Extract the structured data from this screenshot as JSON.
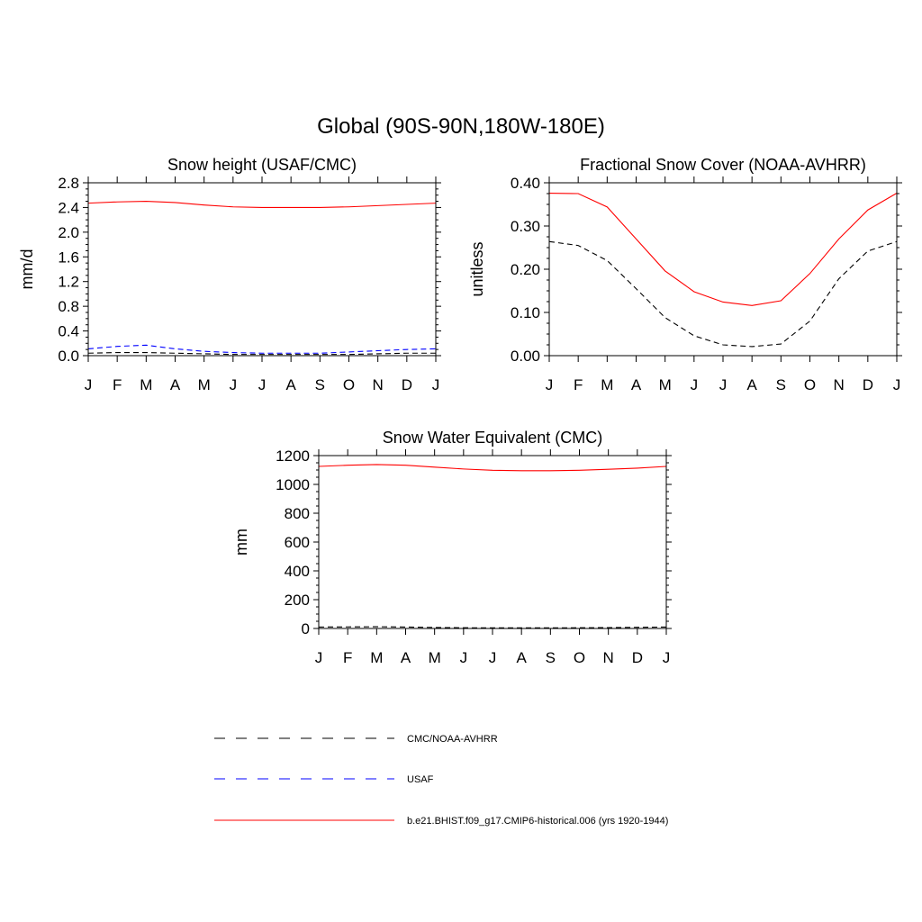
{
  "figure": {
    "title": "Global (90S-90N,180W-180E)"
  },
  "legend": {
    "entries": [
      {
        "label": "CMC/NOAA-AVHRR",
        "color": "#000000",
        "style": "dashed"
      },
      {
        "label": "USAF",
        "color": "#0000ff",
        "style": "dashed"
      },
      {
        "label": "b.e21.BHIST.f09_g17.CMIP6-historical.006 (yrs 1920-1944)",
        "color": "#ff0000",
        "style": "solid"
      }
    ]
  },
  "chart_data": [
    {
      "type": "line",
      "title": "Snow height (USAF/CMC)",
      "xlabel": "",
      "ylabel": "mm/d",
      "categories": [
        "J",
        "F",
        "M",
        "A",
        "M",
        "J",
        "J",
        "A",
        "S",
        "O",
        "N",
        "D",
        "J"
      ],
      "ylim": [
        0,
        2.8
      ],
      "yticks": [
        0,
        0.4,
        0.8,
        1.2,
        1.6,
        2.0,
        2.4,
        2.8
      ],
      "yticklabels": [
        "0.0",
        "0.4",
        "0.8",
        "1.2",
        "1.6",
        "2.0",
        "2.4",
        "2.8"
      ],
      "series": [
        {
          "name": "b.e21.BHIST.f09_g17.CMIP6-historical.006 (yrs 1920-1944)",
          "color": "#ff0000",
          "dash": "",
          "values": [
            2.47,
            2.49,
            2.5,
            2.48,
            2.44,
            2.41,
            2.4,
            2.4,
            2.4,
            2.41,
            2.43,
            2.45,
            2.47
          ]
        },
        {
          "name": "USAF",
          "color": "#0000ff",
          "dash": "6,4",
          "values": [
            0.11,
            0.15,
            0.17,
            0.11,
            0.07,
            0.05,
            0.04,
            0.04,
            0.04,
            0.06,
            0.08,
            0.1,
            0.11
          ]
        },
        {
          "name": "CMC/NOAA-AVHRR",
          "color": "#000000",
          "dash": "6,4",
          "values": [
            0.04,
            0.05,
            0.05,
            0.04,
            0.03,
            0.02,
            0.02,
            0.02,
            0.02,
            0.02,
            0.03,
            0.04,
            0.04
          ]
        }
      ]
    },
    {
      "type": "line",
      "title": "Fractional Snow Cover (NOAA-AVHRR)",
      "xlabel": "",
      "ylabel": "unitless",
      "categories": [
        "J",
        "F",
        "M",
        "A",
        "M",
        "J",
        "J",
        "A",
        "S",
        "O",
        "N",
        "D",
        "J"
      ],
      "ylim": [
        0,
        0.4
      ],
      "yticks": [
        0,
        0.1,
        0.2,
        0.3,
        0.4
      ],
      "yticklabels": [
        "0.00",
        "0.10",
        "0.20",
        "0.30",
        "0.40"
      ],
      "series": [
        {
          "name": "b.e21.BHIST.f09_g17.CMIP6-historical.006 (yrs 1920-1944)",
          "color": "#ff0000",
          "dash": "",
          "values": [
            0.376,
            0.375,
            0.344,
            0.27,
            0.196,
            0.148,
            0.124,
            0.116,
            0.127,
            0.19,
            0.27,
            0.337,
            0.376
          ]
        },
        {
          "name": "CMC/NOAA-AVHRR",
          "color": "#000000",
          "dash": "6,4",
          "values": [
            0.264,
            0.255,
            0.22,
            0.155,
            0.088,
            0.046,
            0.025,
            0.021,
            0.027,
            0.08,
            0.178,
            0.242,
            0.264
          ]
        }
      ]
    },
    {
      "type": "line",
      "title": "Snow Water Equivalent (CMC)",
      "xlabel": "",
      "ylabel": "mm",
      "categories": [
        "J",
        "F",
        "M",
        "A",
        "M",
        "J",
        "J",
        "A",
        "S",
        "O",
        "N",
        "D",
        "J"
      ],
      "ylim": [
        0,
        1200
      ],
      "yticks": [
        0,
        200,
        400,
        600,
        800,
        1000,
        1200
      ],
      "yticklabels": [
        "0",
        "200",
        "400",
        "600",
        "800",
        "1000",
        "1200"
      ],
      "series": [
        {
          "name": "b.e21.BHIST.f09_g17.CMIP6-historical.006 (yrs 1920-1944)",
          "color": "#ff0000",
          "dash": "",
          "values": [
            1125,
            1133,
            1138,
            1133,
            1120,
            1107,
            1098,
            1095,
            1095,
            1098,
            1105,
            1113,
            1125
          ]
        },
        {
          "name": "CMC/NOAA-AVHRR",
          "color": "#000000",
          "dash": "6,4",
          "values": [
            10,
            11,
            12,
            10,
            7,
            5,
            4,
            4,
            4,
            5,
            6,
            8,
            10
          ]
        }
      ]
    }
  ]
}
